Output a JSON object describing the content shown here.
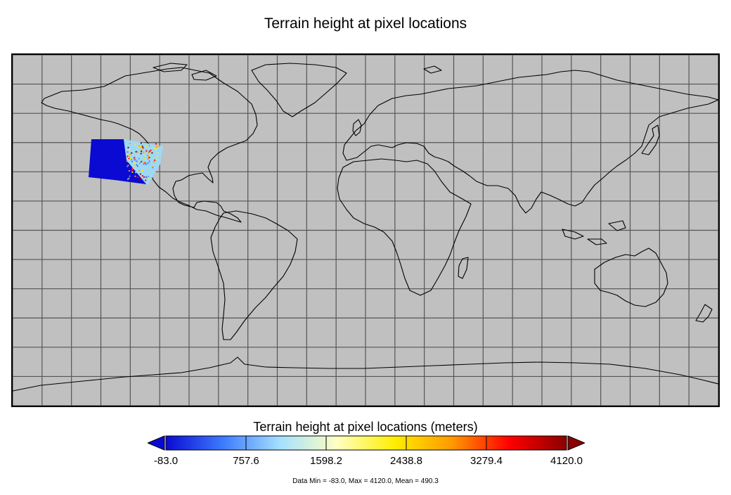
{
  "title": "Terrain height at pixel locations",
  "colorbar": {
    "title": "Terrain height at pixel locations (meters)",
    "ticks": [
      "-83.0",
      "757.6",
      "1598.2",
      "2438.8",
      "3279.4",
      "4120.0"
    ],
    "min": -83.0,
    "max": 4120.0,
    "colors": [
      "#0a0ad2",
      "#3d7bff",
      "#a5e0ff",
      "#ffffc0",
      "#ffee00",
      "#ff9900",
      "#ff0000",
      "#8b0000"
    ]
  },
  "stats": {
    "text": "Data Min = -83.0, Max = 4120.0, Mean = 490.3",
    "min": -83.0,
    "max": 4120.0,
    "mean": 490.3
  },
  "map": {
    "projection": "equirectangular",
    "background_color": "#c0c0c0",
    "coastline_color": "#000000",
    "grid_color": "#555555",
    "grid_spacing_degrees": 15,
    "swath_region": "US west coast"
  }
}
